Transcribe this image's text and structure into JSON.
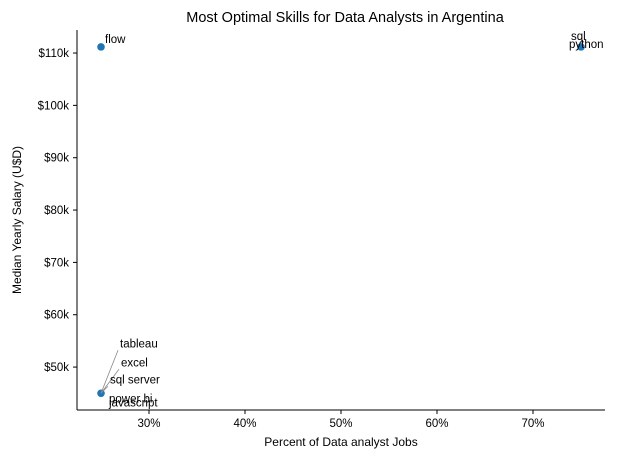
{
  "chart_data": {
    "type": "scatter",
    "title": "Most Optimal Skills for Data Analysts in Argentina",
    "xlabel": "Percent of Data analyst Jobs",
    "ylabel": "Median Yearly Salary (U$D)",
    "xlim": [
      22.5,
      77.5
    ],
    "ylim": [
      41800,
      114400
    ],
    "x_ticks": [
      30,
      40,
      50,
      60,
      70
    ],
    "x_tick_labels": [
      "30%",
      "40%",
      "50%",
      "60%",
      "70%"
    ],
    "y_ticks": [
      50000,
      60000,
      70000,
      80000,
      90000,
      100000,
      110000
    ],
    "y_tick_labels": [
      "$50k",
      "$60k",
      "$70k",
      "$80k",
      "$90k",
      "$100k",
      "$110k"
    ],
    "grid": false,
    "color": "#1f77b4",
    "points": [
      {
        "label": "flow",
        "x": 25,
        "y": 111175
      },
      {
        "label": "sql",
        "x": 75,
        "y": 111175
      },
      {
        "label": "python",
        "x": 75,
        "y": 111175
      },
      {
        "label": "tableau",
        "x": 25,
        "y": 45000
      },
      {
        "label": "excel",
        "x": 25,
        "y": 45000
      },
      {
        "label": "sql server",
        "x": 25,
        "y": 45000
      },
      {
        "label": "power bi",
        "x": 25,
        "y": 45000
      },
      {
        "label": "javascript",
        "x": 25,
        "y": 45000
      }
    ]
  }
}
